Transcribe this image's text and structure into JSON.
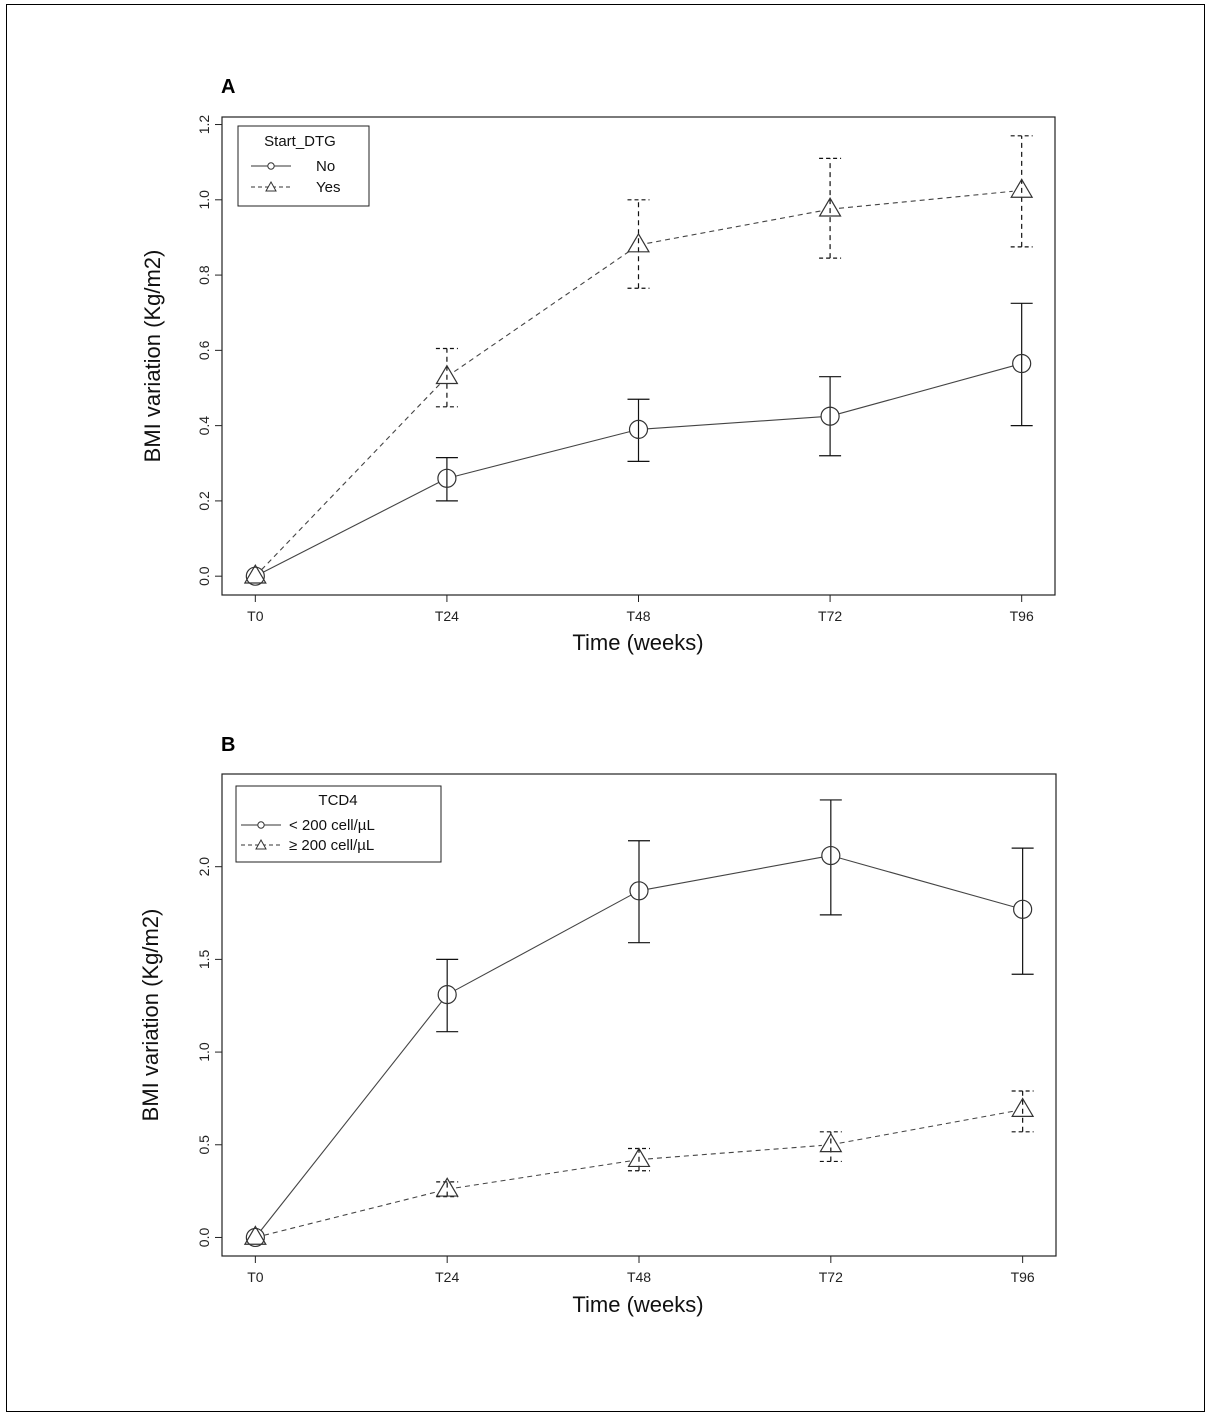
{
  "chart_data": [
    {
      "panel": "A",
      "type": "line",
      "xlabel": "Time (weeks)",
      "ylabel": "BMI variation (Kg/m2)",
      "categories": [
        "T0",
        "T24",
        "T48",
        "T72",
        "T96"
      ],
      "ylim": [
        -0.05,
        1.22
      ],
      "yticks": [
        "0.0",
        "0.2",
        "0.4",
        "0.6",
        "0.8",
        "1.0",
        "1.2"
      ],
      "legend": {
        "title": "Start_DTG",
        "position": "top-left"
      },
      "series": [
        {
          "name": "No",
          "marker": "circle",
          "line": "solid",
          "values": [
            0.0,
            0.26,
            0.39,
            0.425,
            0.565
          ],
          "lower": [
            0.0,
            0.2,
            0.305,
            0.32,
            0.4
          ],
          "upper": [
            0.0,
            0.315,
            0.47,
            0.53,
            0.725
          ]
        },
        {
          "name": "Yes",
          "marker": "triangle",
          "line": "dashed",
          "values": [
            0.0,
            0.53,
            0.88,
            0.975,
            1.025
          ],
          "lower": [
            0.0,
            0.45,
            0.765,
            0.845,
            0.875
          ],
          "upper": [
            0.0,
            0.605,
            1.0,
            1.11,
            1.17
          ]
        }
      ]
    },
    {
      "panel": "B",
      "type": "line",
      "xlabel": "Time (weeks)",
      "ylabel": "BMI variation (Kg/m2)",
      "categories": [
        "T0",
        "T24",
        "T48",
        "T72",
        "T96"
      ],
      "ylim": [
        -0.1,
        2.5
      ],
      "yticks": [
        "0.0",
        "0.5",
        "1.0",
        "1.5",
        "2.0"
      ],
      "legend": {
        "title": "TCD4",
        "position": "top-left"
      },
      "series": [
        {
          "name": "< 200 cell/µL",
          "marker": "circle",
          "line": "solid",
          "values": [
            0.0,
            1.31,
            1.87,
            2.06,
            1.77
          ],
          "lower": [
            0.0,
            1.11,
            1.59,
            1.74,
            1.42
          ],
          "upper": [
            0.0,
            1.5,
            2.14,
            2.36,
            2.1
          ]
        },
        {
          "name": "≥ 200 cell/µL",
          "marker": "triangle",
          "line": "dashed",
          "values": [
            0.0,
            0.26,
            0.42,
            0.5,
            0.69
          ],
          "lower": [
            0.0,
            0.22,
            0.36,
            0.41,
            0.57
          ],
          "upper": [
            0.0,
            0.3,
            0.48,
            0.57,
            0.79
          ]
        }
      ]
    }
  ]
}
